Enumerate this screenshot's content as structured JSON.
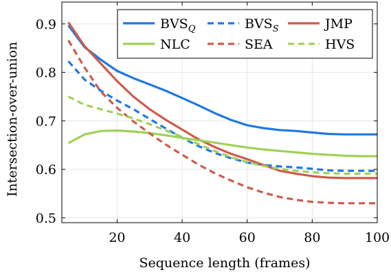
{
  "chart_data": {
    "type": "line",
    "xlabel": "Sequence length (frames)",
    "ylabel": "Intersection-over-union",
    "xlim": [
      3,
      100
    ],
    "ylim": [
      0.49,
      0.945
    ],
    "xticks": [
      20,
      40,
      60,
      80,
      100
    ],
    "yticks": [
      0.5,
      0.6,
      0.7,
      0.8,
      0.9
    ],
    "xtick_labels": [
      "20",
      "40",
      "60",
      "80",
      "100"
    ],
    "ytick_labels": [
      "0.5",
      "0.6",
      "0.7",
      "0.8",
      "0.9"
    ],
    "grid": true,
    "legend_position": "top-right",
    "x": [
      5,
      10,
      15,
      20,
      25,
      30,
      35,
      40,
      45,
      50,
      55,
      60,
      65,
      70,
      75,
      80,
      85,
      90,
      95,
      100
    ],
    "series": [
      {
        "name": "BVS",
        "name_sub": "Q",
        "color": "#1f77e4",
        "dash": "solid",
        "values": [
          0.897,
          0.852,
          0.826,
          0.803,
          0.788,
          0.775,
          0.762,
          0.747,
          0.732,
          0.716,
          0.702,
          0.691,
          0.685,
          0.681,
          0.679,
          0.676,
          0.673,
          0.672,
          0.672,
          0.672
        ]
      },
      {
        "name": "BVS",
        "name_sub": "S",
        "color": "#1f77e4",
        "dash": "dashed",
        "values": [
          0.823,
          0.785,
          0.762,
          0.742,
          0.724,
          0.704,
          0.684,
          0.665,
          0.648,
          0.634,
          0.623,
          0.614,
          0.609,
          0.606,
          0.604,
          0.601,
          0.598,
          0.597,
          0.597,
          0.597
        ]
      },
      {
        "name": "JMP",
        "name_sub": "",
        "color": "#d05a4a",
        "dash": "solid",
        "values": [
          0.903,
          0.854,
          0.818,
          0.782,
          0.75,
          0.724,
          0.702,
          0.682,
          0.662,
          0.646,
          0.632,
          0.621,
          0.609,
          0.597,
          0.591,
          0.586,
          0.583,
          0.582,
          0.582,
          0.582
        ]
      },
      {
        "name": "NLC",
        "name_sub": "",
        "color": "#9ed255",
        "dash": "solid",
        "values": [
          0.654,
          0.672,
          0.679,
          0.68,
          0.678,
          0.675,
          0.67,
          0.665,
          0.66,
          0.655,
          0.65,
          0.645,
          0.641,
          0.638,
          0.635,
          0.632,
          0.63,
          0.628,
          0.627,
          0.627
        ]
      },
      {
        "name": "SEA",
        "name_sub": "",
        "color": "#d05a4a",
        "dash": "dashed",
        "values": [
          0.866,
          0.81,
          0.76,
          0.727,
          0.699,
          0.674,
          0.651,
          0.63,
          0.61,
          0.592,
          0.577,
          0.563,
          0.552,
          0.543,
          0.537,
          0.533,
          0.531,
          0.53,
          0.53,
          0.53
        ]
      },
      {
        "name": "HVS",
        "name_sub": "",
        "color": "#9ed255",
        "dash": "dashed",
        "values": [
          0.75,
          0.733,
          0.724,
          0.715,
          0.705,
          0.693,
          0.68,
          0.667,
          0.652,
          0.638,
          0.625,
          0.615,
          0.607,
          0.601,
          0.597,
          0.594,
          0.592,
          0.591,
          0.591,
          0.591
        ]
      }
    ]
  }
}
